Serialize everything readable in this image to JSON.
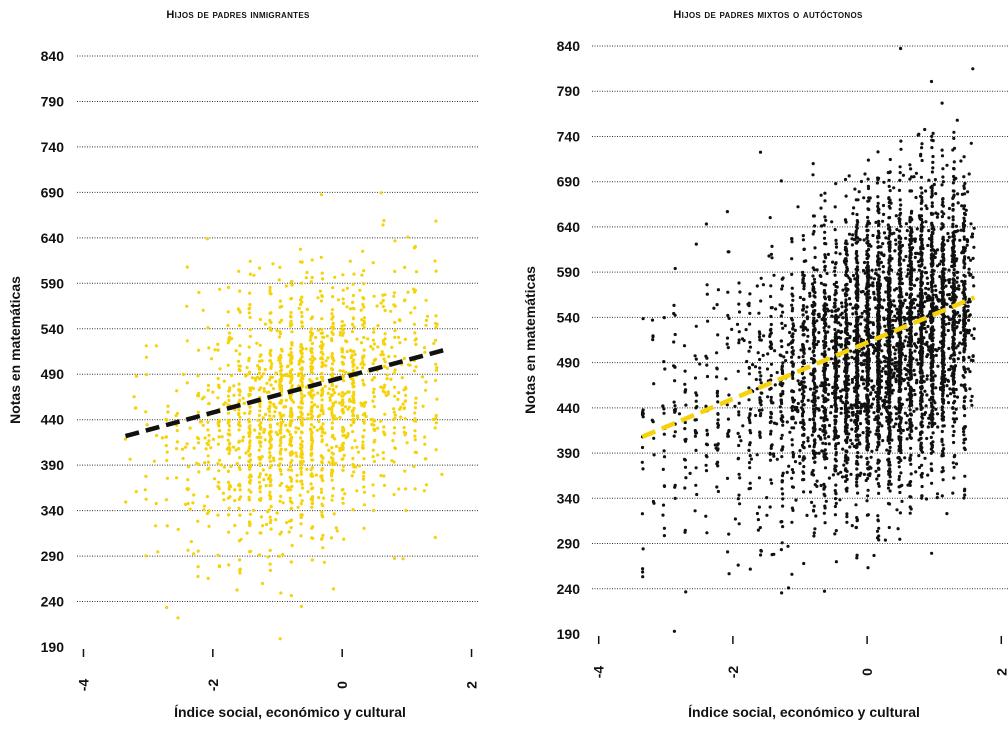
{
  "chart_data": [
    {
      "type": "scatter",
      "title": "Hijos de padres inmigrantes",
      "xlabel": "Índice social, económico y cultural",
      "ylabel": "Notas en matemáticas",
      "xlim": [
        -4.1,
        2.1
      ],
      "ylim": [
        190,
        840
      ],
      "x_ticks": [
        -4,
        -2,
        0,
        2
      ],
      "y_ticks": [
        190,
        240,
        290,
        340,
        390,
        440,
        490,
        540,
        590,
        640,
        690,
        740,
        790,
        840
      ],
      "grid": "horizontal dotted",
      "point_color": "#f5d20a",
      "trend_color": "#111111",
      "trend_line": {
        "x": [
          -3.35,
          1.6
        ],
        "y": [
          422,
          517
        ]
      },
      "cloud": {
        "x_range": [
          -3.35,
          1.6
        ],
        "x_mode": -0.6,
        "y_mean": 460,
        "y_sd": 70,
        "slope": 19,
        "count": 1700
      }
    },
    {
      "type": "scatter",
      "title": "Hijos de padres mixtos o autóctonos",
      "xlabel": "Índice social, económico y cultural",
      "ylabel": "Notas en matemáticas",
      "xlim": [
        -4.1,
        2.1
      ],
      "ylim": [
        190,
        840
      ],
      "x_ticks": [
        -4,
        -2,
        0,
        2
      ],
      "y_ticks": [
        190,
        240,
        290,
        340,
        390,
        440,
        490,
        540,
        590,
        640,
        690,
        740,
        790,
        840
      ],
      "grid": "horizontal dotted",
      "point_color": "#111111",
      "trend_color": "#f5d20a",
      "trend_line": {
        "x": [
          -3.35,
          1.6
        ],
        "y": [
          408,
          562
        ]
      },
      "cloud": {
        "x_range": [
          -3.35,
          1.6
        ],
        "x_mode": 0.4,
        "y_mean": 505,
        "y_sd": 78,
        "slope": 31,
        "count": 5200
      }
    }
  ]
}
